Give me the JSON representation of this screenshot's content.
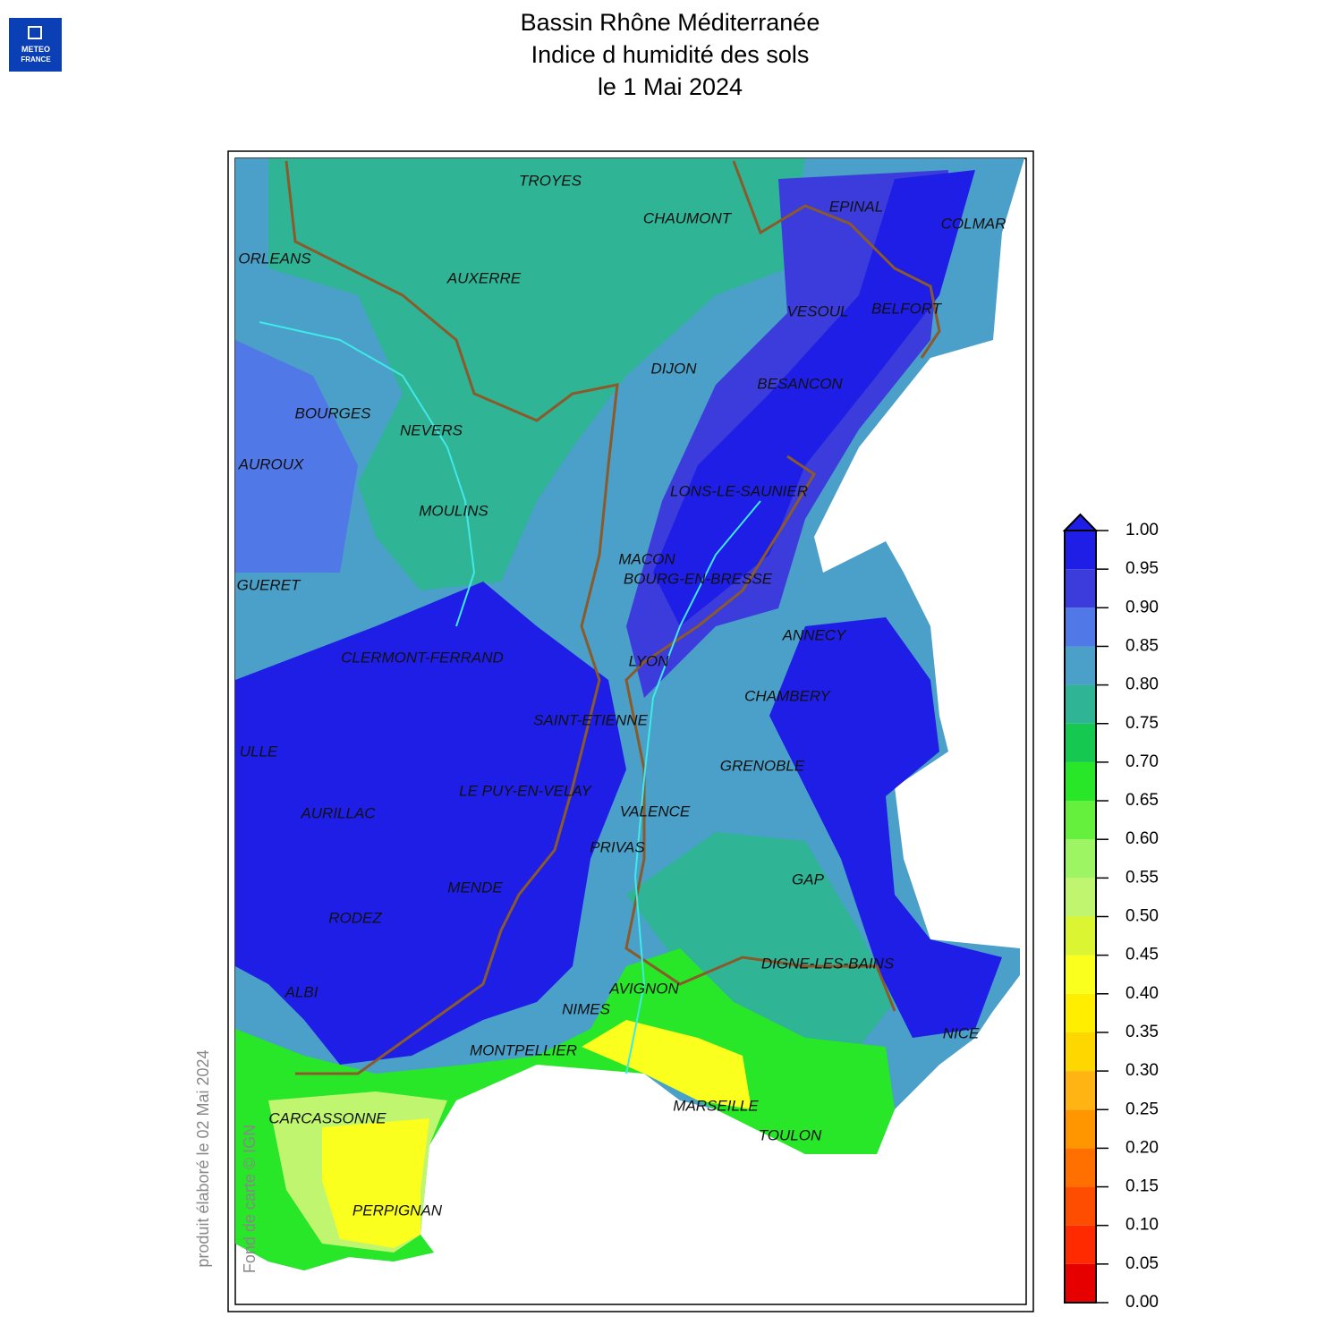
{
  "logo": {
    "line1": "METEO",
    "line2": "FRANCE"
  },
  "title": [
    "Bassin Rhône Méditerranée",
    "Indice d humidité des sols",
    "le 1 Mai 2024"
  ],
  "credits": {
    "produced": "produit élaboré le 02 Mai 2024",
    "basemap": "Fond de carte © IGN"
  },
  "cities": [
    "TROYES",
    "CHAUMONT",
    "EPINAL",
    "COLMAR",
    "ORLEANS",
    "AUXERRE",
    "VESOUL",
    "BELFORT",
    "DIJON",
    "BESANCON",
    "BOURGES",
    "NEVERS",
    "AUROUX",
    "LONS-LE-SAUNIER",
    "MOULINS",
    "MACON",
    "BOURG-EN-BRESSE",
    "GUERET",
    "ANNECY",
    "CLERMONT-FERRAND",
    "LYON",
    "CHAMBERY",
    "SAINT-ETIENNE",
    "ULLE",
    "GRENOBLE",
    "LE PUY-EN-VELAY",
    "AURILLAC",
    "VALENCE",
    "PRIVAS",
    "GAP",
    "MENDE",
    "RODEZ",
    "DIGNE-LES-BAINS",
    "AVIGNON",
    "ALBI",
    "NIMES",
    "NICE",
    "MONTPELLIER",
    "MARSEILLE",
    "CARCASSONNE",
    "TOULON",
    "PERPIGNAN"
  ],
  "colorbar": {
    "ticks": [
      {
        "value": 0,
        "label": "0.00"
      },
      {
        "value": 0.05,
        "label": "0.05"
      },
      {
        "value": 0.1,
        "label": "0.10"
      },
      {
        "value": 0.15,
        "label": "0.15"
      },
      {
        "value": 0.2,
        "label": "0.20"
      },
      {
        "value": 0.25,
        "label": "0.25"
      },
      {
        "value": 0.3,
        "label": "0.30"
      },
      {
        "value": 0.35,
        "label": "0.35"
      },
      {
        "value": 0.4,
        "label": "0.40"
      },
      {
        "value": 0.45,
        "label": "0.45"
      },
      {
        "value": 0.5,
        "label": "0.50"
      },
      {
        "value": 0.55,
        "label": "0.55"
      },
      {
        "value": 0.6,
        "label": "0.60"
      },
      {
        "value": 0.65,
        "label": "0.65"
      },
      {
        "value": 0.7,
        "label": "0.70"
      },
      {
        "value": 0.75,
        "label": "0.75"
      },
      {
        "value": 0.8,
        "label": "0.80"
      },
      {
        "value": 0.85,
        "label": "0.85"
      },
      {
        "value": 0.9,
        "label": "0.90"
      },
      {
        "value": 0.95,
        "label": "0.95"
      },
      {
        "value": 1,
        "label": "1.00"
      }
    ],
    "colors": [
      "#e60000",
      "#ff2a00",
      "#ff4d00",
      "#ff7000",
      "#ff9600",
      "#ffb414",
      "#ffd700",
      "#ffee00",
      "#faff1e",
      "#dcf532",
      "#c0f570",
      "#9ef564",
      "#64f03c",
      "#28e628",
      "#14c850",
      "#30b496",
      "#4aa0c8",
      "#5078e6",
      "#3c3cdc",
      "#1e1ee6"
    ],
    "extend_color": "#1e1ee6"
  }
}
